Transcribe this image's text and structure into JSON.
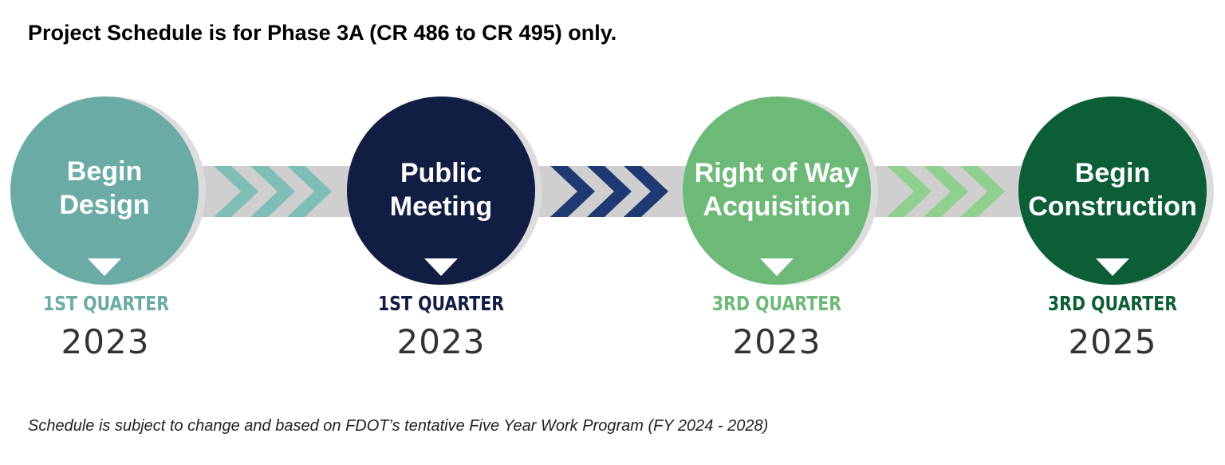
{
  "headline": "Project Schedule is for Phase 3A (CR 486 to CR 495) only.",
  "footnote": "Schedule is subject to change and based on FDOT’s tentative Five Year Work Program (FY 2024 - 2028)",
  "milestones": [
    {
      "line1": "Begin",
      "line2": "Design",
      "quarter": "1ST QUARTER",
      "year": "2023",
      "color": "#6aaba5"
    },
    {
      "line1": "Public",
      "line2": "Meeting",
      "quarter": "1ST QUARTER",
      "year": "2023",
      "color": "#121d44"
    },
    {
      "line1": "Right of Way",
      "line2": "Acquisition",
      "quarter": "3RD QUARTER",
      "year": "2023",
      "color": "#6dba78"
    },
    {
      "line1": "Begin",
      "line2": "Construction",
      "quarter": "3RD QUARTER",
      "year": "2025",
      "color": "#0c5e36"
    }
  ],
  "connectors": [
    {
      "chevron_color": "#7fbdb7"
    },
    {
      "chevron_color": "#1f3a72"
    },
    {
      "chevron_color": "#8fd08f"
    }
  ],
  "colors": {
    "track": "#cfcfcf",
    "track_light": "#e4e4e4",
    "circle_shadow": "#dcdcdc",
    "pointer": "#ffffff"
  }
}
